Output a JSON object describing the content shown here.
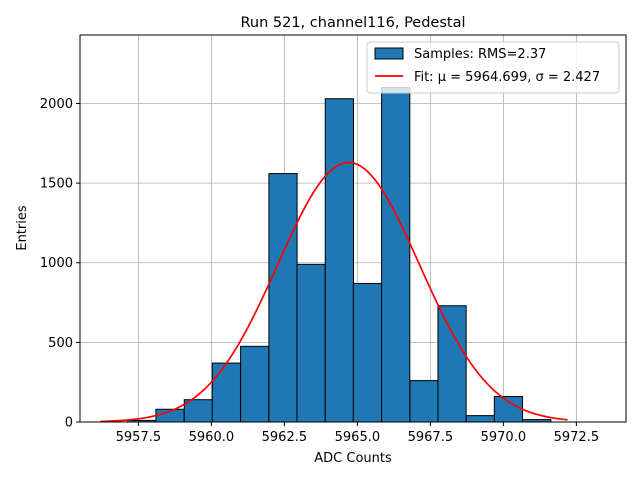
{
  "chart_data": {
    "type": "bar",
    "title": "Run 521, channel116, Pedestal",
    "xlabel": "ADC Counts",
    "ylabel": "Entries",
    "xlim": [
      5955.5,
      5974.2
    ],
    "ylim": [
      0,
      2430
    ],
    "grid": true,
    "legend_position": "top-right",
    "bin_width": 0.966,
    "bins": [
      {
        "left": 5957.13,
        "value": 10
      },
      {
        "left": 5958.1,
        "value": 80
      },
      {
        "left": 5959.07,
        "value": 140
      },
      {
        "left": 5960.03,
        "value": 370
      },
      {
        "left": 5961.0,
        "value": 475
      },
      {
        "left": 5961.97,
        "value": 1560
      },
      {
        "left": 5962.93,
        "value": 990
      },
      {
        "left": 5963.9,
        "value": 2030
      },
      {
        "left": 5964.86,
        "value": 870
      },
      {
        "left": 5965.83,
        "value": 2100
      },
      {
        "left": 5966.8,
        "value": 260
      },
      {
        "left": 5967.76,
        "value": 730
      },
      {
        "left": 5968.73,
        "value": 40
      },
      {
        "left": 5969.69,
        "value": 160
      },
      {
        "left": 5970.66,
        "value": 15
      }
    ],
    "fit": {
      "mu": 5964.699,
      "sigma": 2.427,
      "amplitude": 1630,
      "x_range": [
        5956.2,
        5972.2
      ]
    },
    "xticks": [
      5957.5,
      5960.0,
      5962.5,
      5965.0,
      5967.5,
      5970.0,
      5972.5
    ],
    "xtick_labels": [
      "5957.5",
      "5960.0",
      "5962.5",
      "5965.0",
      "5967.5",
      "5970.0",
      "5972.5"
    ],
    "yticks": [
      0,
      500,
      1000,
      1500,
      2000
    ],
    "ytick_labels": [
      "0",
      "500",
      "1000",
      "1500",
      "2000"
    ],
    "series": [
      {
        "name": "Samples: RMS=2.37",
        "color": "#1f77b4"
      },
      {
        "name": "Fit: μ = 5964.699, σ = 2.427",
        "color": "#ff0000"
      }
    ]
  }
}
